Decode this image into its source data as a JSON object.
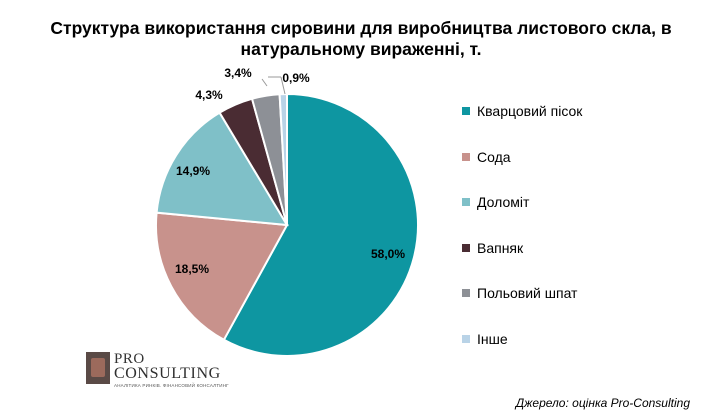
{
  "chart_data": {
    "type": "pie",
    "title_lines": [
      "Структура використання сировини для виробництва листового скла, в",
      "натуральному вираженні, т."
    ],
    "slices": [
      {
        "label": "Кварцовий пісок",
        "value": 58.0,
        "value_label": "58,0%",
        "color": "#0e96a1"
      },
      {
        "label": "Сода",
        "value": 18.5,
        "value_label": "18,5%",
        "color": "#c8928c"
      },
      {
        "label": "Доломіт",
        "value": 14.9,
        "value_label": "14,9%",
        "color": "#7fc0c8"
      },
      {
        "label": "Вапняк",
        "value": 4.3,
        "value_label": "4,3%",
        "color": "#4a2c33"
      },
      {
        "label": "Польовий шпат",
        "value": 3.4,
        "value_label": "3,4%",
        "color": "#8d9096"
      },
      {
        "label": "Інше",
        "value": 0.9,
        "value_label": "0,9%",
        "color": "#b9d3e7"
      }
    ],
    "legend_position": "right",
    "start_angle": "12 o'clock",
    "direction": "clockwise"
  },
  "logo": {
    "line1": "PRO",
    "line2": "CONSULTING",
    "tagline": "АНАЛІТИКА РИНКІВ. ФІНАНСОВИЙ КОНСАЛТИНГ"
  },
  "source": "Джерело: оцінка Pro-Consulting"
}
